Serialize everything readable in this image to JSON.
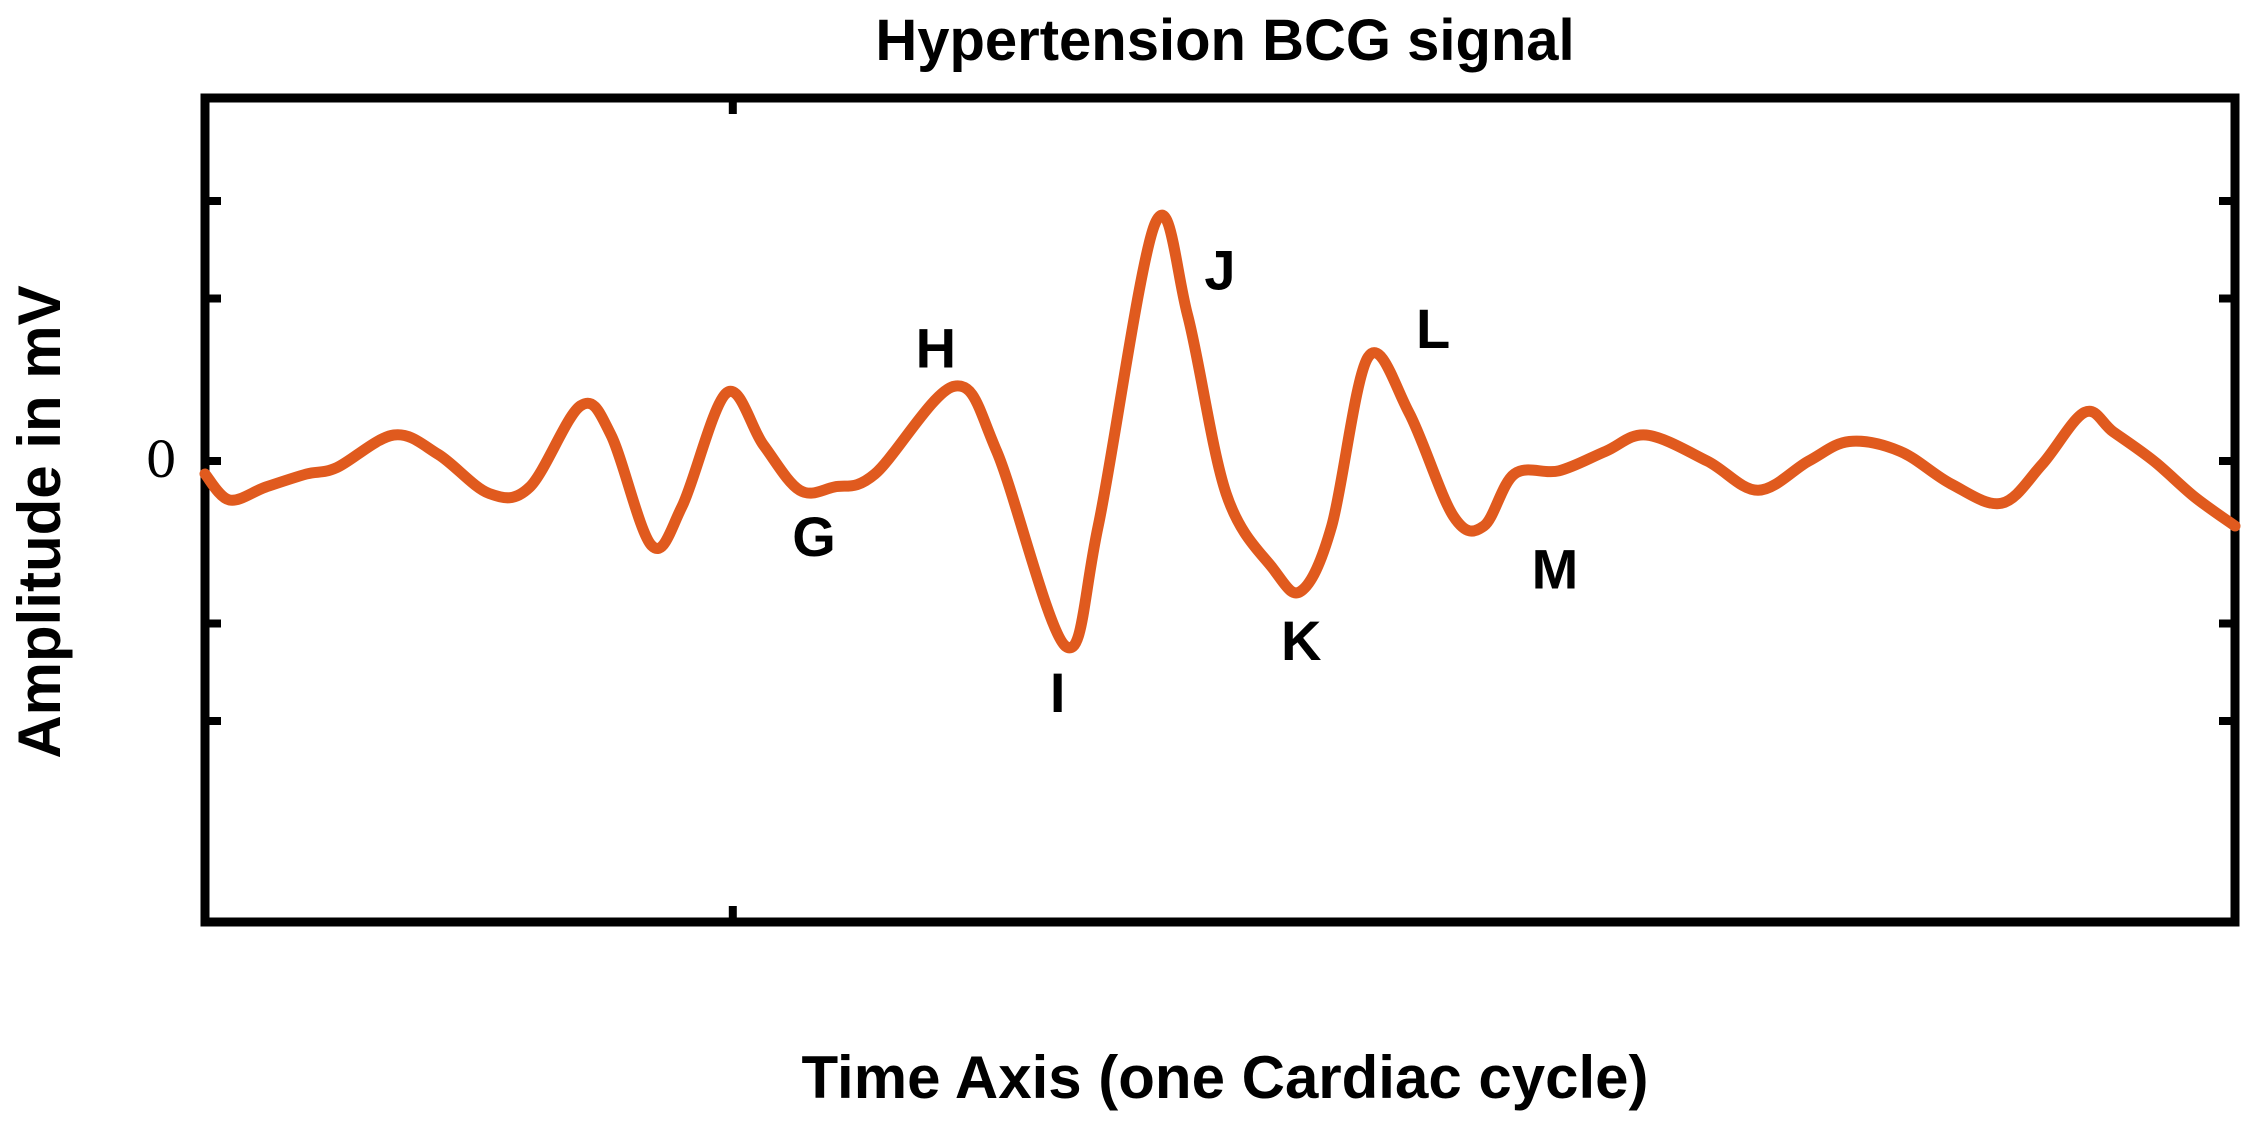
{
  "chart_data": {
    "type": "line",
    "title": "Hypertension BCG signal",
    "xlabel": "Time Axis (one Cardiac cycle)",
    "ylabel": "Amplitude in mV",
    "y_tick_labels": [
      {
        "value": 0,
        "label": "0"
      }
    ],
    "xlim": [
      0,
      100
    ],
    "ylim": [
      -100,
      100
    ],
    "grid": false,
    "line_color": "#E05A1E",
    "series": [
      {
        "values": [
          [
            0,
            -4
          ],
          [
            1.2,
            -12
          ],
          [
            3,
            -8
          ],
          [
            5,
            -4
          ],
          [
            6.5,
            -2
          ],
          [
            9.3,
            8
          ],
          [
            11.5,
            2
          ],
          [
            14,
            -10
          ],
          [
            16,
            -8
          ],
          [
            18.5,
            17
          ],
          [
            20,
            8
          ],
          [
            22,
            -26
          ],
          [
            23.5,
            -14
          ],
          [
            25.7,
            21
          ],
          [
            27.5,
            5
          ],
          [
            29.3,
            -9
          ],
          [
            31,
            -8
          ],
          [
            33,
            -4
          ],
          [
            36.9,
            23
          ],
          [
            39,
            3
          ],
          [
            42.4,
            -57
          ],
          [
            44,
            -20
          ],
          [
            46.8,
            73
          ],
          [
            48.4,
            45
          ],
          [
            50.3,
            -10
          ],
          [
            52.6,
            -33
          ],
          [
            54,
            -40
          ],
          [
            55.5,
            -20
          ],
          [
            57.3,
            32
          ],
          [
            59.3,
            15
          ],
          [
            61.5,
            -17
          ],
          [
            63,
            -20
          ],
          [
            64.5,
            -4
          ],
          [
            66.7,
            -3
          ],
          [
            69,
            3
          ],
          [
            71,
            8
          ],
          [
            74,
            0
          ],
          [
            76.5,
            -9
          ],
          [
            79,
            0
          ],
          [
            81,
            6
          ],
          [
            83.5,
            3
          ],
          [
            86,
            -7
          ],
          [
            88.5,
            -13
          ],
          [
            90.5,
            -1
          ],
          [
            92.6,
            15
          ],
          [
            94,
            9
          ],
          [
            96,
            0
          ],
          [
            98,
            -11
          ],
          [
            100,
            -20
          ]
        ]
      }
    ],
    "annotations": [
      {
        "text": "G",
        "x": 30,
        "y": -23
      },
      {
        "text": "H",
        "x": 36,
        "y": 35
      },
      {
        "text": "I",
        "x": 42,
        "y": -71
      },
      {
        "text": "J",
        "x": 50,
        "y": 59
      },
      {
        "text": "K",
        "x": 54,
        "y": -55
      },
      {
        "text": "L",
        "x": 60.5,
        "y": 41
      },
      {
        "text": "M",
        "x": 66.5,
        "y": -33
      }
    ]
  }
}
